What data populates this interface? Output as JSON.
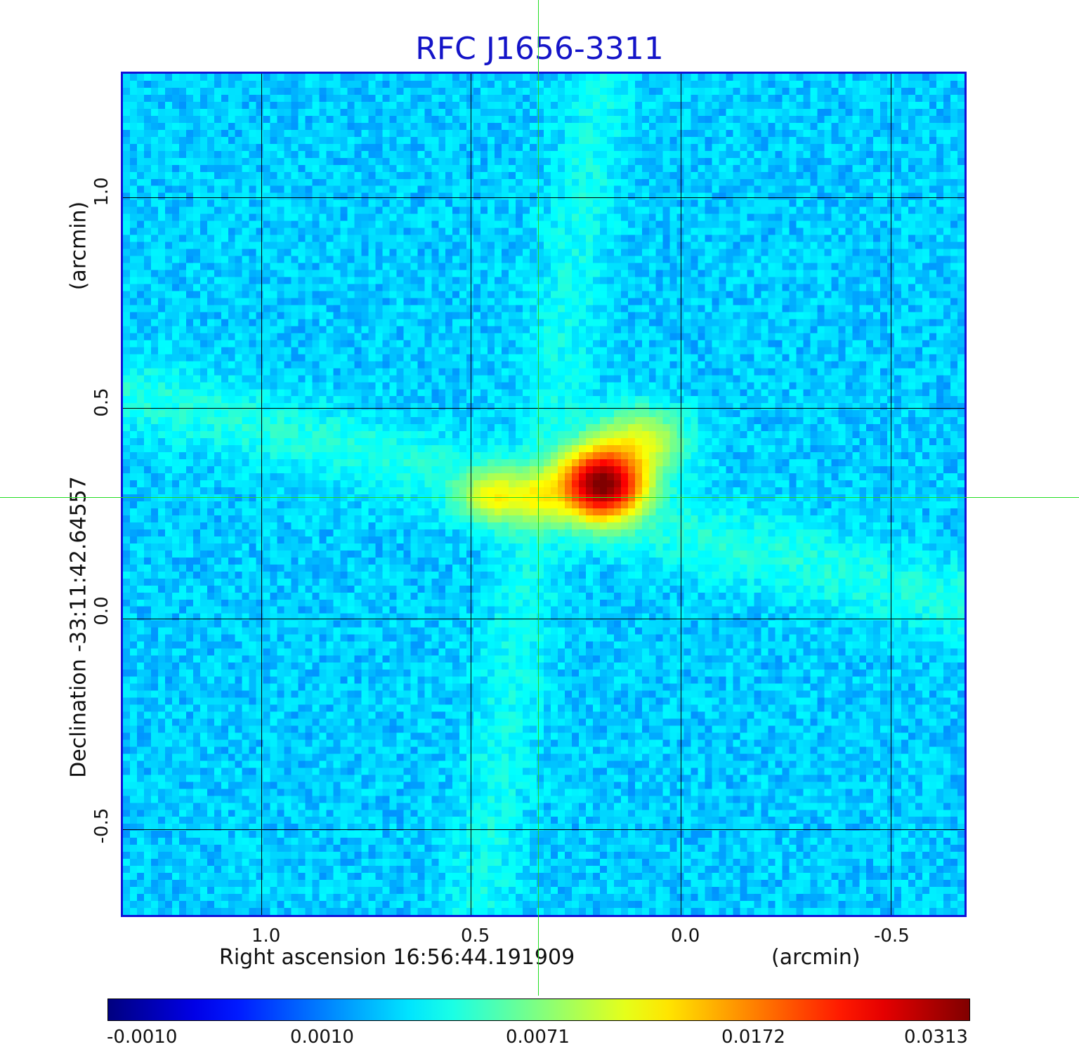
{
  "chart_data": {
    "type": "heatmap",
    "title": "RFC J1656-3311",
    "xlabel": "Right ascension  16:56:44.191909",
    "xunit": "(arcmin)",
    "ylabel": "Declination  -33:11:42.64557",
    "yunit": "(arcmin)",
    "xlim": [
      1.34,
      -0.68
    ],
    "ylim": [
      -0.71,
      1.3
    ],
    "x_ticks": [
      {
        "value": 1.0,
        "label": "1.0"
      },
      {
        "value": 0.5,
        "label": "0.5"
      },
      {
        "value": 0.0,
        "label": "0.0"
      },
      {
        "value": -0.5,
        "label": "-0.5"
      }
    ],
    "y_ticks": [
      {
        "value": 1.0,
        "label": "1.0"
      },
      {
        "value": 0.5,
        "label": "0.5"
      },
      {
        "value": 0.0,
        "label": "0.0"
      },
      {
        "value": -0.5,
        "label": "-0.5"
      }
    ],
    "grid": true,
    "crosshair": {
      "ra_offset": 0.34,
      "dec_offset": 0.29,
      "color": "#22dd22"
    },
    "colormap": "jet",
    "colorbar": {
      "ticks": [
        "-0.0010",
        "0.0010",
        "0.0071",
        "0.0172",
        "0.0313"
      ],
      "placement": "bottom"
    },
    "peak_value": 0.0313,
    "components": [
      {
        "x": 0.19,
        "y": 0.32,
        "peak": 0.0313,
        "sigma_x": 0.06,
        "sigma_y": 0.05
      },
      {
        "x": 0.1,
        "y": 0.42,
        "peak": 0.0065,
        "sigma_x": 0.07,
        "sigma_y": 0.05
      },
      {
        "x": 0.45,
        "y": 0.29,
        "peak": 0.0068,
        "sigma_x": 0.05,
        "sigma_y": 0.04
      },
      {
        "x": 0.34,
        "y": 0.29,
        "peak": 0.005,
        "sigma_x": 0.04,
        "sigma_y": 0.04
      }
    ]
  }
}
